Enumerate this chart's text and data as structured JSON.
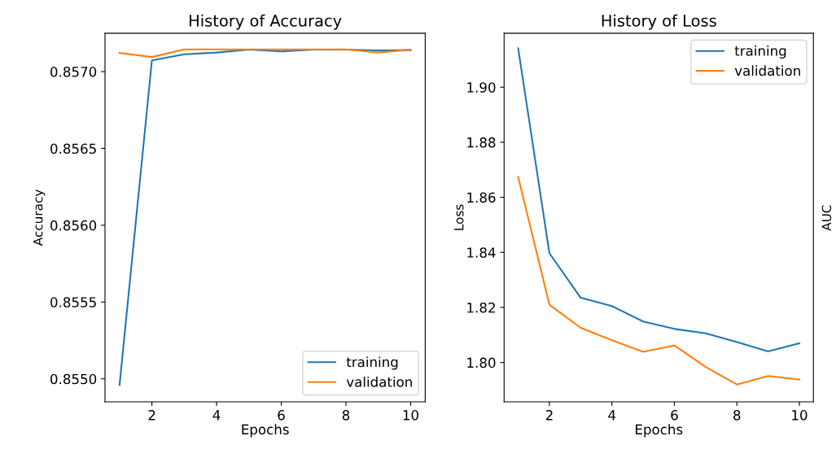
{
  "chart_data": [
    {
      "type": "line",
      "title": "History of Accuracy",
      "xlabel": "Epochs",
      "ylabel": "Accuracy",
      "x": [
        1,
        2,
        3,
        4,
        5,
        6,
        7,
        8,
        9,
        10
      ],
      "series": [
        {
          "name": "training",
          "color": "#1f77b4",
          "values": [
            0.85496,
            0.857073,
            0.857113,
            0.857124,
            0.857143,
            0.857131,
            0.857143,
            0.857143,
            0.857138,
            0.85714
          ]
        },
        {
          "name": "validation",
          "color": "#ff7f0e",
          "values": [
            0.857122,
            0.857095,
            0.857145,
            0.857145,
            0.857145,
            0.857145,
            0.857145,
            0.857145,
            0.857124,
            0.857143
          ]
        }
      ],
      "xlim": [
        0.55,
        10.45
      ],
      "xticks": [
        2,
        4,
        6,
        8,
        10
      ],
      "ylim": [
        0.85485,
        0.85725
      ],
      "yticks": [
        {
          "value": 0.855,
          "label": "0.8550"
        },
        {
          "value": 0.8555,
          "label": "0.8555"
        },
        {
          "value": 0.856,
          "label": "0.8560"
        },
        {
          "value": 0.8565,
          "label": "0.8565"
        },
        {
          "value": 0.857,
          "label": "0.8570"
        }
      ],
      "legend": "lower right"
    },
    {
      "type": "line",
      "title": "History of Loss",
      "xlabel": "Epochs",
      "ylabel": "Loss",
      "x": [
        1,
        2,
        3,
        4,
        5,
        6,
        7,
        8,
        9,
        10
      ],
      "series": [
        {
          "name": "training",
          "color": "#1f77b4",
          "values": [
            1.9141,
            1.8397,
            1.8235,
            1.8205,
            1.8149,
            1.8122,
            1.8106,
            1.8074,
            1.804,
            1.807
          ]
        },
        {
          "name": "validation",
          "color": "#ff7f0e",
          "values": [
            1.8674,
            1.821,
            1.8126,
            1.8081,
            1.8039,
            1.8062,
            1.7984,
            1.792,
            1.7951,
            1.7938
          ]
        }
      ],
      "xlim": [
        0.55,
        10.45
      ],
      "xticks": [
        2,
        4,
        6,
        8,
        10
      ],
      "ylim": [
        1.7857,
        1.9196
      ],
      "yticks": [
        {
          "value": 1.8,
          "label": "1.80"
        },
        {
          "value": 1.82,
          "label": "1.82"
        },
        {
          "value": 1.84,
          "label": "1.84"
        },
        {
          "value": 1.86,
          "label": "1.86"
        },
        {
          "value": 1.88,
          "label": "1.88"
        },
        {
          "value": 1.9,
          "label": "1.90"
        }
      ],
      "legend": "upper right",
      "annotations": [
        "AUC"
      ]
    }
  ]
}
